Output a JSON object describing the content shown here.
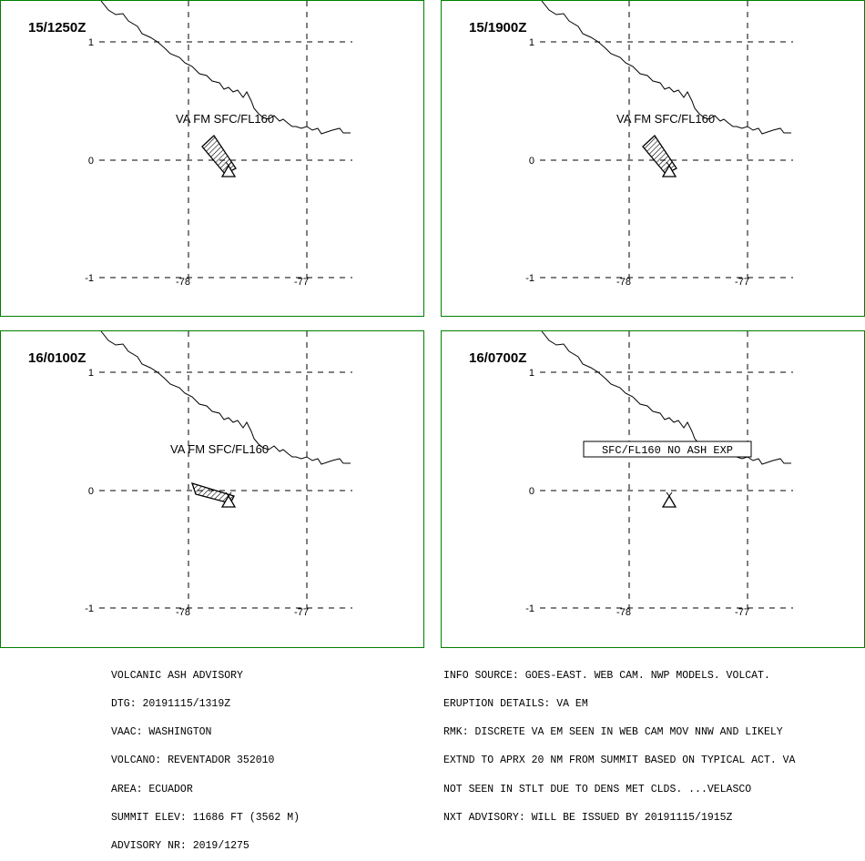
{
  "panels": [
    {
      "time": "15/1250Z",
      "label": "VA FM SFC/FL160",
      "box": false,
      "lat_ticks": [
        "1",
        "0",
        "-1"
      ],
      "lon_ticks": [
        "-78",
        "-77"
      ]
    },
    {
      "time": "15/1900Z",
      "label": "VA FM SFC/FL160",
      "box": false,
      "lat_ticks": [
        "1",
        "0",
        "-1"
      ],
      "lon_ticks": [
        "-78",
        "-77"
      ]
    },
    {
      "time": "16/0100Z",
      "label": "VA FM SFC/FL160",
      "box": false,
      "lat_ticks": [
        "1",
        "0",
        "-1"
      ],
      "lon_ticks": [
        "-78",
        "-77"
      ]
    },
    {
      "time": "16/0700Z",
      "label": "SFC/FL160 NO ASH EXP",
      "box": true,
      "lat_ticks": [
        "1",
        "0",
        "-1"
      ],
      "lon_ticks": [
        "-78",
        "-77"
      ]
    }
  ],
  "advisory_left": [
    "VOLCANIC ASH ADVISORY",
    "DTG: 20191115/1319Z",
    "VAAC: WASHINGTON",
    "VOLCANO: REVENTADOR 352010",
    "AREA: ECUADOR",
    "SUMMIT ELEV: 11686 FT (3562 M)",
    "ADVISORY NR: 2019/1275"
  ],
  "advisory_right": [
    "INFO SOURCE: GOES-EAST. WEB CAM. NWP MODELS. VOLCAT.",
    "ERUPTION DETAILS: VA EM",
    "RMK: DISCRETE VA EM SEEN IN WEB CAM MOV NNW AND LIKELY",
    "EXTND TO APRX 20 NM FROM SUMMIT BASED ON TYPICAL ACT. VA",
    "NOT SEEN IN STLT DUE TO DENS MET CLDS. ...VELASCO",
    "NXT ADVISORY: WILL BE ISSUED BY 20191115/1915Z"
  ],
  "colors": {
    "frame": "#008000",
    "ink": "#000000"
  },
  "icons": {
    "volcano": "volcano-triangle-icon"
  }
}
